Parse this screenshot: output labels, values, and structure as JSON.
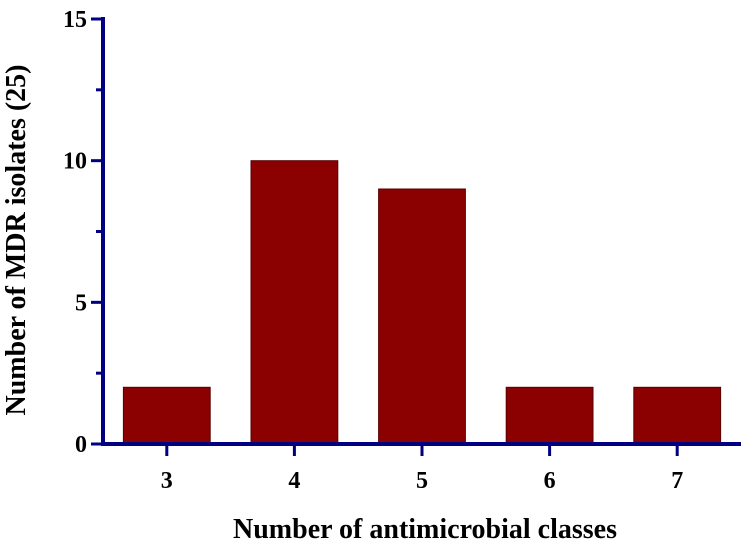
{
  "chart_data": {
    "type": "bar",
    "categories": [
      "3",
      "4",
      "5",
      "6",
      "7"
    ],
    "values": [
      2,
      10,
      9,
      2,
      2
    ],
    "xlabel": "Number of antimicrobial classes",
    "ylabel": "Number of MDR isolates (25)",
    "ylim": [
      0,
      15
    ],
    "yticks": [
      "0",
      "5",
      "10",
      "15"
    ],
    "grid": false,
    "legend": "none",
    "colors": {
      "bar": "#8b0000",
      "bar_edge": "#5a0000",
      "axis": "#000080"
    }
  }
}
